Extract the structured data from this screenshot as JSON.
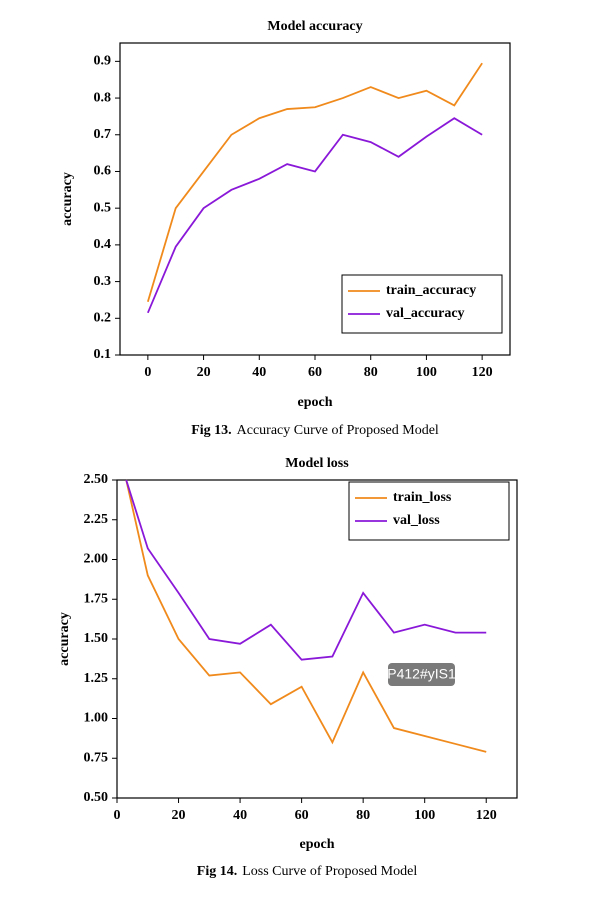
{
  "chart_data": [
    {
      "type": "line",
      "title": "Model accuracy",
      "x_label": "epoch",
      "y_label": "accuracy",
      "caption_label": "Fig 13.",
      "caption": "Accuracy Curve of Proposed Model",
      "x": [
        0,
        10,
        20,
        30,
        40,
        50,
        60,
        70,
        80,
        90,
        100,
        110,
        120
      ],
      "series": [
        {
          "name": "train_accuracy",
          "color": "#f08a1c",
          "values": [
            0.245,
            0.5,
            0.6,
            0.7,
            0.745,
            0.77,
            0.775,
            0.8,
            0.83,
            0.8,
            0.82,
            0.78,
            0.895
          ]
        },
        {
          "name": "val_accuracy",
          "color": "#8a18d8",
          "values": [
            0.215,
            0.395,
            0.5,
            0.55,
            0.58,
            0.62,
            0.6,
            0.7,
            0.68,
            0.64,
            0.695,
            0.745,
            0.7
          ]
        }
      ],
      "xlim": [
        -10,
        130
      ],
      "xticks": [
        0,
        20,
        40,
        60,
        80,
        100,
        120
      ],
      "ylim": [
        0.1,
        0.95
      ],
      "yticks": [
        0.1,
        0.2,
        0.3,
        0.4,
        0.5,
        0.6,
        0.7,
        0.8,
        0.9
      ],
      "legend": "lower-right"
    },
    {
      "type": "line",
      "title": "Model loss",
      "x_label": "epoch",
      "y_label": "accuracy",
      "caption_label": "Fig 14.",
      "caption": "Loss Curve of Proposed Model",
      "annotation": "P412#yIS1",
      "x": [
        3,
        10,
        20,
        30,
        40,
        50,
        60,
        70,
        80,
        90,
        100,
        110,
        120
      ],
      "series": [
        {
          "name": "train_loss",
          "color": "#f08a1c",
          "values": [
            2.5,
            1.9,
            1.5,
            1.27,
            1.29,
            1.09,
            1.2,
            0.85,
            1.29,
            0.94,
            0.89,
            0.84,
            0.79
          ]
        },
        {
          "name": "val_loss",
          "color": "#8a18d8",
          "values": [
            2.5,
            2.07,
            1.79,
            1.5,
            1.47,
            1.59,
            1.37,
            1.39,
            1.79,
            1.54,
            1.59,
            1.54,
            1.54
          ]
        }
      ],
      "xlim": [
        0,
        130
      ],
      "xticks": [
        0,
        20,
        40,
        60,
        80,
        100,
        120
      ],
      "ylim": [
        0.5,
        2.5
      ],
      "yticks": [
        {
          "value": 0.5,
          "label": "0.50"
        },
        {
          "value": 0.75,
          "label": "0.75"
        },
        {
          "value": 1,
          "label": "1.00"
        },
        {
          "value": 1.25,
          "label": "1.25"
        },
        {
          "value": 1.5,
          "label": "1.50"
        },
        {
          "value": 1.75,
          "label": "1.75"
        },
        {
          "value": 2,
          "label": "2.00"
        },
        {
          "value": 2.25,
          "label": "2.25"
        },
        {
          "value": 2.5,
          "label": "2.50"
        }
      ],
      "legend": "upper-right"
    }
  ]
}
